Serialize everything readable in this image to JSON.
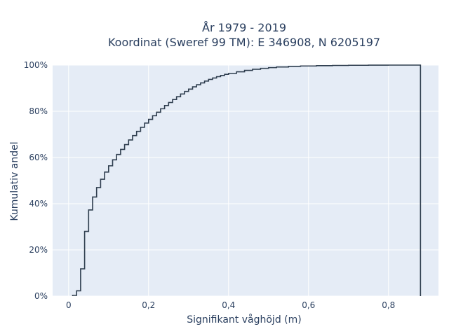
{
  "chart_data": {
    "type": "line",
    "subtype": "cumulative-step",
    "title_line1": "År 1979 - 2019",
    "title_line2": "Koordinat (Sweref 99 TM): E 346908, N 6205197",
    "xlabel": "Signifikant våghöjd (m)",
    "ylabel": "Kumulativ andel",
    "xlim": [
      -0.04,
      0.925
    ],
    "ylim": [
      0,
      100
    ],
    "xticks": [
      0,
      0.2,
      0.4,
      0.6,
      0.8
    ],
    "xtick_labels": [
      "0",
      "0,2",
      "0,4",
      "0,6",
      "0,8"
    ],
    "yticks": [
      0,
      20,
      40,
      60,
      80,
      100
    ],
    "ytick_labels": [
      "0%",
      "20%",
      "40%",
      "60%",
      "80%",
      "100%"
    ],
    "grid": true,
    "series": [
      {
        "color": "#2f3e4f",
        "x": [
          0.01,
          0.01,
          0.02,
          0.02,
          0.03,
          0.03,
          0.04,
          0.04,
          0.05,
          0.05,
          0.06,
          0.06,
          0.07,
          0.07,
          0.08,
          0.08,
          0.09,
          0.09,
          0.1,
          0.1,
          0.11,
          0.11,
          0.12,
          0.12,
          0.13,
          0.13,
          0.14,
          0.14,
          0.15,
          0.15,
          0.16,
          0.16,
          0.17,
          0.17,
          0.18,
          0.18,
          0.19,
          0.19,
          0.2,
          0.2,
          0.21,
          0.21,
          0.22,
          0.22,
          0.23,
          0.23,
          0.24,
          0.24,
          0.25,
          0.25,
          0.26,
          0.26,
          0.27,
          0.27,
          0.28,
          0.28,
          0.29,
          0.29,
          0.3,
          0.3,
          0.31,
          0.31,
          0.32,
          0.32,
          0.33,
          0.33,
          0.34,
          0.34,
          0.35,
          0.35,
          0.36,
          0.36,
          0.37,
          0.37,
          0.38,
          0.38,
          0.39,
          0.39,
          0.4,
          0.4,
          0.42,
          0.42,
          0.44,
          0.44,
          0.46,
          0.46,
          0.48,
          0.48,
          0.5,
          0.5,
          0.52,
          0.52,
          0.55,
          0.55,
          0.58,
          0.58,
          0.62,
          0.62,
          0.66,
          0.66,
          0.7,
          0.7,
          0.75,
          0.75,
          0.8,
          0.8,
          0.88,
          0.88
        ],
        "y": [
          0,
          0.3,
          0.3,
          2.3,
          2.3,
          11.8,
          11.8,
          28.0,
          28.0,
          37.3,
          37.3,
          42.9,
          42.9,
          47.0,
          47.0,
          50.6,
          50.6,
          53.7,
          53.7,
          56.4,
          56.4,
          59.0,
          59.0,
          61.3,
          61.3,
          63.5,
          63.5,
          65.6,
          65.6,
          67.6,
          67.6,
          69.5,
          69.5,
          71.3,
          71.3,
          73.1,
          73.1,
          74.9,
          74.9,
          76.5,
          76.5,
          78.1,
          78.1,
          79.6,
          79.6,
          81.1,
          81.1,
          82.5,
          82.5,
          83.8,
          83.8,
          85.1,
          85.1,
          86.3,
          86.3,
          87.5,
          87.5,
          88.6,
          88.6,
          89.6,
          89.6,
          90.6,
          90.6,
          91.5,
          91.5,
          92.3,
          92.3,
          93.1,
          93.1,
          93.8,
          93.8,
          94.4,
          94.4,
          95.0,
          95.0,
          95.5,
          95.5,
          96.0,
          96.0,
          96.4,
          96.4,
          97.1,
          97.1,
          97.7,
          97.7,
          98.2,
          98.2,
          98.6,
          98.6,
          98.9,
          98.9,
          99.2,
          99.2,
          99.45,
          99.45,
          99.62,
          99.62,
          99.75,
          99.75,
          99.85,
          99.85,
          99.92,
          99.92,
          99.97,
          99.97,
          100,
          100,
          0
        ]
      }
    ]
  }
}
